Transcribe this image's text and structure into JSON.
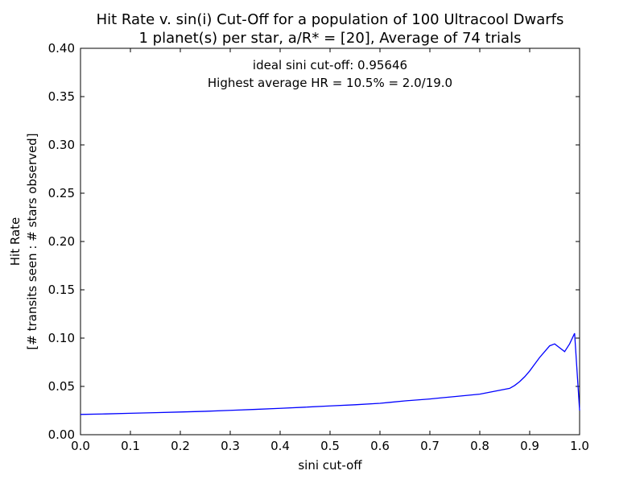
{
  "chart_data": {
    "type": "line",
    "title": [
      "Hit Rate v. sin(i) Cut-Off for a population of 100 Ultracool Dwarfs",
      "1 planet(s) per star, a/R* = [20], Average of 74 trials"
    ],
    "xlabel": "sini cut-off",
    "ylabel": [
      "Hit Rate",
      "[# transits seen : # stars observed]"
    ],
    "xlim": [
      0.0,
      1.0
    ],
    "ylim": [
      0.0,
      0.4
    ],
    "x_ticks": [
      "0.0",
      "0.1",
      "0.2",
      "0.3",
      "0.4",
      "0.5",
      "0.6",
      "0.7",
      "0.8",
      "0.9",
      "1.0"
    ],
    "y_ticks": [
      "0.00",
      "0.05",
      "0.10",
      "0.15",
      "0.20",
      "0.25",
      "0.30",
      "0.35",
      "0.40"
    ],
    "annotations": [
      "ideal sini cut-off: 0.95646",
      "Highest average HR = 10.5% = 2.0/19.0"
    ],
    "grid": false,
    "series": [
      {
        "color": "#0000ff",
        "x": [
          0.0,
          0.05,
          0.1,
          0.15,
          0.2,
          0.25,
          0.3,
          0.35,
          0.4,
          0.45,
          0.5,
          0.55,
          0.6,
          0.62,
          0.65,
          0.7,
          0.72,
          0.75,
          0.8,
          0.83,
          0.86,
          0.87,
          0.88,
          0.89,
          0.9,
          0.91,
          0.92,
          0.93,
          0.94,
          0.95,
          0.96,
          0.97,
          0.98,
          0.99,
          1.0
        ],
        "y": [
          0.021,
          0.0215,
          0.0222,
          0.0228,
          0.0235,
          0.0242,
          0.0252,
          0.0262,
          0.0273,
          0.0285,
          0.0298,
          0.031,
          0.0325,
          0.0335,
          0.035,
          0.037,
          0.038,
          0.0395,
          0.042,
          0.045,
          0.048,
          0.051,
          0.055,
          0.06,
          0.066,
          0.073,
          0.08,
          0.086,
          0.092,
          0.094,
          0.09,
          0.086,
          0.094,
          0.105,
          0.025
        ]
      }
    ]
  }
}
